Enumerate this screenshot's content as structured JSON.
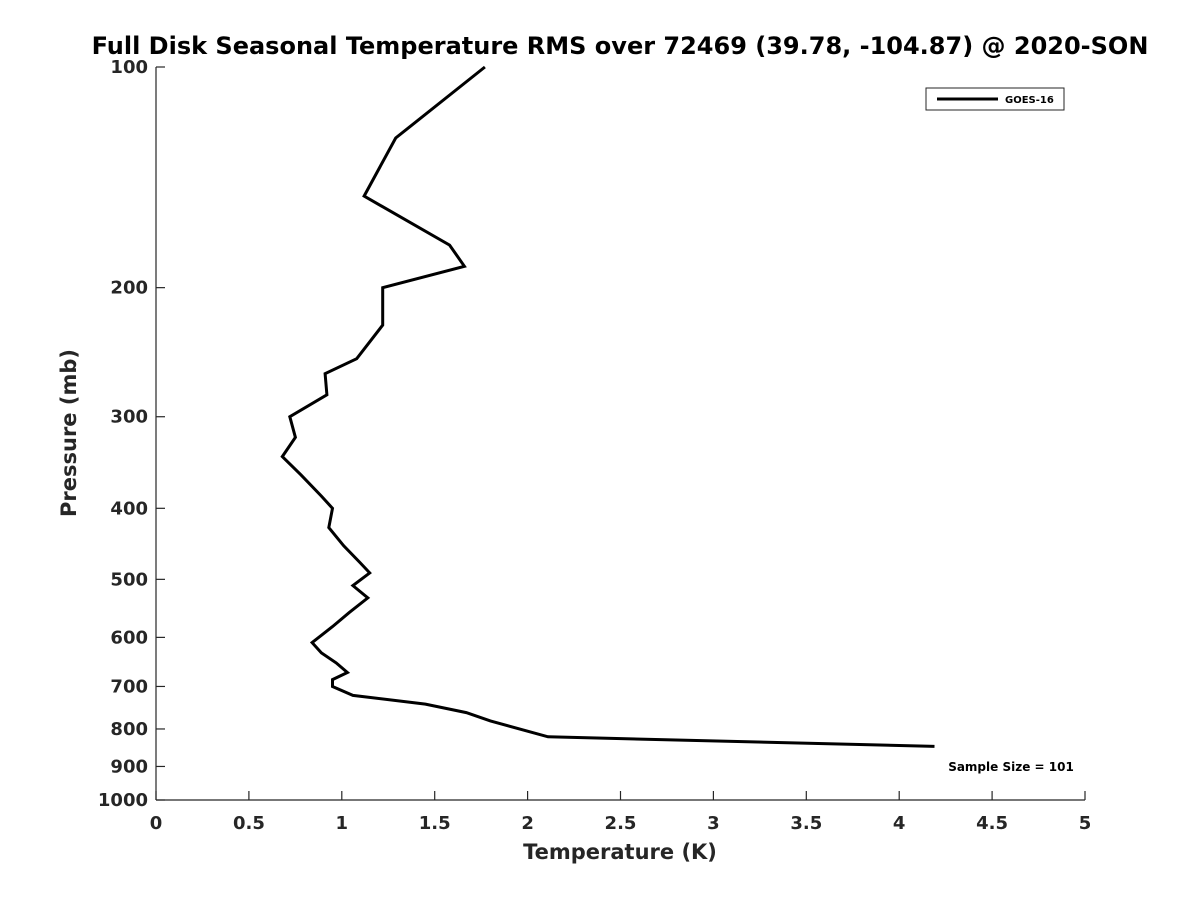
{
  "chart_data": {
    "type": "line",
    "title": "Full Disk Seasonal Temperature RMS over 72469 (39.78, -104.87) @ 2020-SON",
    "xlabel": "Temperature (K)",
    "ylabel": "Pressure (mb)",
    "xlim": [
      0,
      5
    ],
    "ylim": [
      100,
      1000
    ],
    "y_scale": "log",
    "y_reversed": true,
    "x_ticks": [
      0,
      0.5,
      1,
      1.5,
      2,
      2.5,
      3,
      3.5,
      4,
      4.5,
      5
    ],
    "x_tick_labels": [
      "0",
      "0.5",
      "1",
      "1.5",
      "2",
      "2.5",
      "3",
      "3.5",
      "4",
      "4.5",
      "5"
    ],
    "y_ticks": [
      100,
      200,
      300,
      400,
      500,
      600,
      700,
      800,
      900,
      1000
    ],
    "y_tick_labels": [
      "100",
      "200",
      "300",
      "400",
      "500",
      "600",
      "700",
      "800",
      "900",
      "1000"
    ],
    "grid": false,
    "legend_position": "top-right",
    "series": [
      {
        "name": "GOES-16",
        "color": "#000000",
        "points": [
          [
            1.77,
            100
          ],
          [
            1.29,
            125
          ],
          [
            1.12,
            150
          ],
          [
            1.58,
            175
          ],
          [
            1.66,
            187
          ],
          [
            1.22,
            200
          ],
          [
            1.22,
            225
          ],
          [
            1.08,
            250
          ],
          [
            0.91,
            262
          ],
          [
            0.92,
            280
          ],
          [
            0.72,
            300
          ],
          [
            0.75,
            320
          ],
          [
            0.68,
            340
          ],
          [
            0.78,
            360
          ],
          [
            0.89,
            385
          ],
          [
            0.95,
            400
          ],
          [
            0.93,
            425
          ],
          [
            1.01,
            450
          ],
          [
            1.1,
            475
          ],
          [
            1.15,
            490
          ],
          [
            1.06,
            510
          ],
          [
            1.14,
            530
          ],
          [
            1.04,
            555
          ],
          [
            0.95,
            580
          ],
          [
            0.84,
            610
          ],
          [
            0.89,
            630
          ],
          [
            0.97,
            650
          ],
          [
            1.03,
            670
          ],
          [
            0.95,
            685
          ],
          [
            0.95,
            700
          ],
          [
            1.06,
            720
          ],
          [
            1.45,
            740
          ],
          [
            1.67,
            760
          ],
          [
            1.8,
            780
          ],
          [
            2.11,
            820
          ],
          [
            4.19,
            845
          ]
        ]
      }
    ],
    "annotation": "Sample Size = 101"
  }
}
